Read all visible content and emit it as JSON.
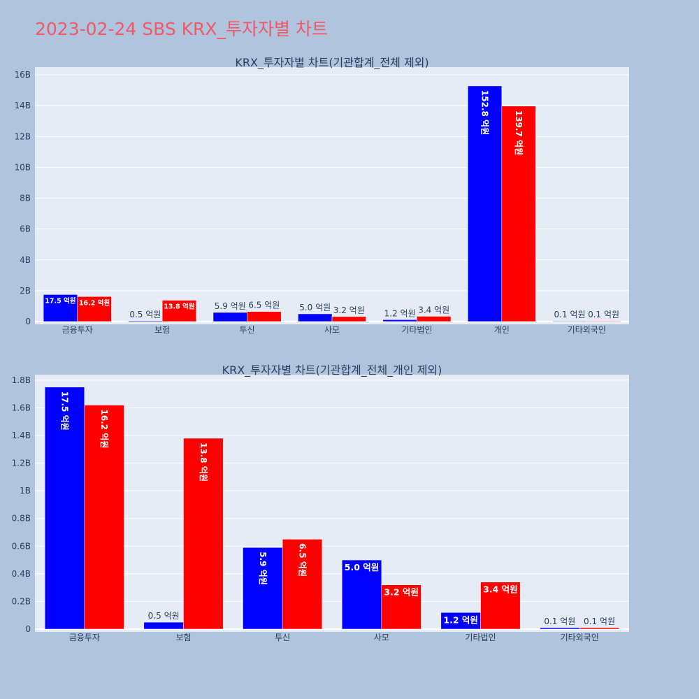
{
  "page": {
    "title": "2023-02-24 SBS KRX_투자자별 차트",
    "background": "#b0c4de",
    "title_color": "#ef5868"
  },
  "colors": {
    "series_1": "#0000ff",
    "series_2": "#ff0000",
    "plot_background": "#e5ecf6",
    "grid": "#ffffff"
  },
  "chart_data": [
    {
      "type": "bar",
      "title": "KRX_투자자별 차트(기관합계_전체 제외)",
      "categories": [
        "금융투자",
        "보험",
        "투신",
        "사모",
        "기타법인",
        "개인",
        "기타외국인"
      ],
      "series": [
        {
          "values": [
            1.75,
            0.05,
            0.59,
            0.5,
            0.12,
            15.28,
            0.01
          ],
          "labels": [
            "17.5 억원",
            "0.5 억원",
            "5.9 억원",
            "5.0 억원",
            "1.2 억원",
            "152.8 억원",
            "0.1 억원"
          ],
          "color": "#0000ff"
        },
        {
          "values": [
            1.62,
            1.38,
            0.65,
            0.32,
            0.34,
            13.97,
            0.01
          ],
          "labels": [
            "16.2 억원",
            "13.8 억원",
            "6.5 억원",
            "3.2 억원",
            "3.4 억원",
            "139.7 억원",
            "0.1 억원"
          ],
          "color": "#ff0000"
        }
      ],
      "value_unit": "B",
      "ylim": [
        0,
        16.5
      ],
      "yticks": [
        0,
        2,
        4,
        6,
        8,
        10,
        12,
        14,
        16
      ],
      "ytick_labels": [
        "0",
        "2B",
        "4B",
        "6B",
        "8B",
        "10B",
        "12B",
        "14B",
        "16B"
      ],
      "grid": true,
      "xlabel": "",
      "ylabel": ""
    },
    {
      "type": "bar",
      "title": "KRX_투자자별 차트(기관합계_전체_개인 제외)",
      "categories": [
        "금융투자",
        "보험",
        "투신",
        "사모",
        "기타법인",
        "기타외국인"
      ],
      "series": [
        {
          "values": [
            1.75,
            0.05,
            0.59,
            0.5,
            0.12,
            0.01
          ],
          "labels": [
            "17.5 억원",
            "0.5 억원",
            "5.9 억원",
            "5.0 억원",
            "1.2 억원",
            "0.1 억원"
          ],
          "color": "#0000ff"
        },
        {
          "values": [
            1.62,
            1.38,
            0.65,
            0.32,
            0.34,
            0.01
          ],
          "labels": [
            "16.2 억원",
            "13.8 억원",
            "6.5 억원",
            "3.2 억원",
            "3.4 억원",
            "0.1 억원"
          ],
          "color": "#ff0000"
        }
      ],
      "value_unit": "B",
      "ylim": [
        0,
        1.84
      ],
      "yticks": [
        0,
        0.2,
        0.4,
        0.6,
        0.8,
        1.0,
        1.2,
        1.4,
        1.6,
        1.8
      ],
      "ytick_labels": [
        "0",
        "0.2B",
        "0.4B",
        "0.6B",
        "0.8B",
        "1B",
        "1.2B",
        "1.4B",
        "1.6B",
        "1.8B"
      ],
      "grid": true,
      "xlabel": "",
      "ylabel": ""
    }
  ]
}
